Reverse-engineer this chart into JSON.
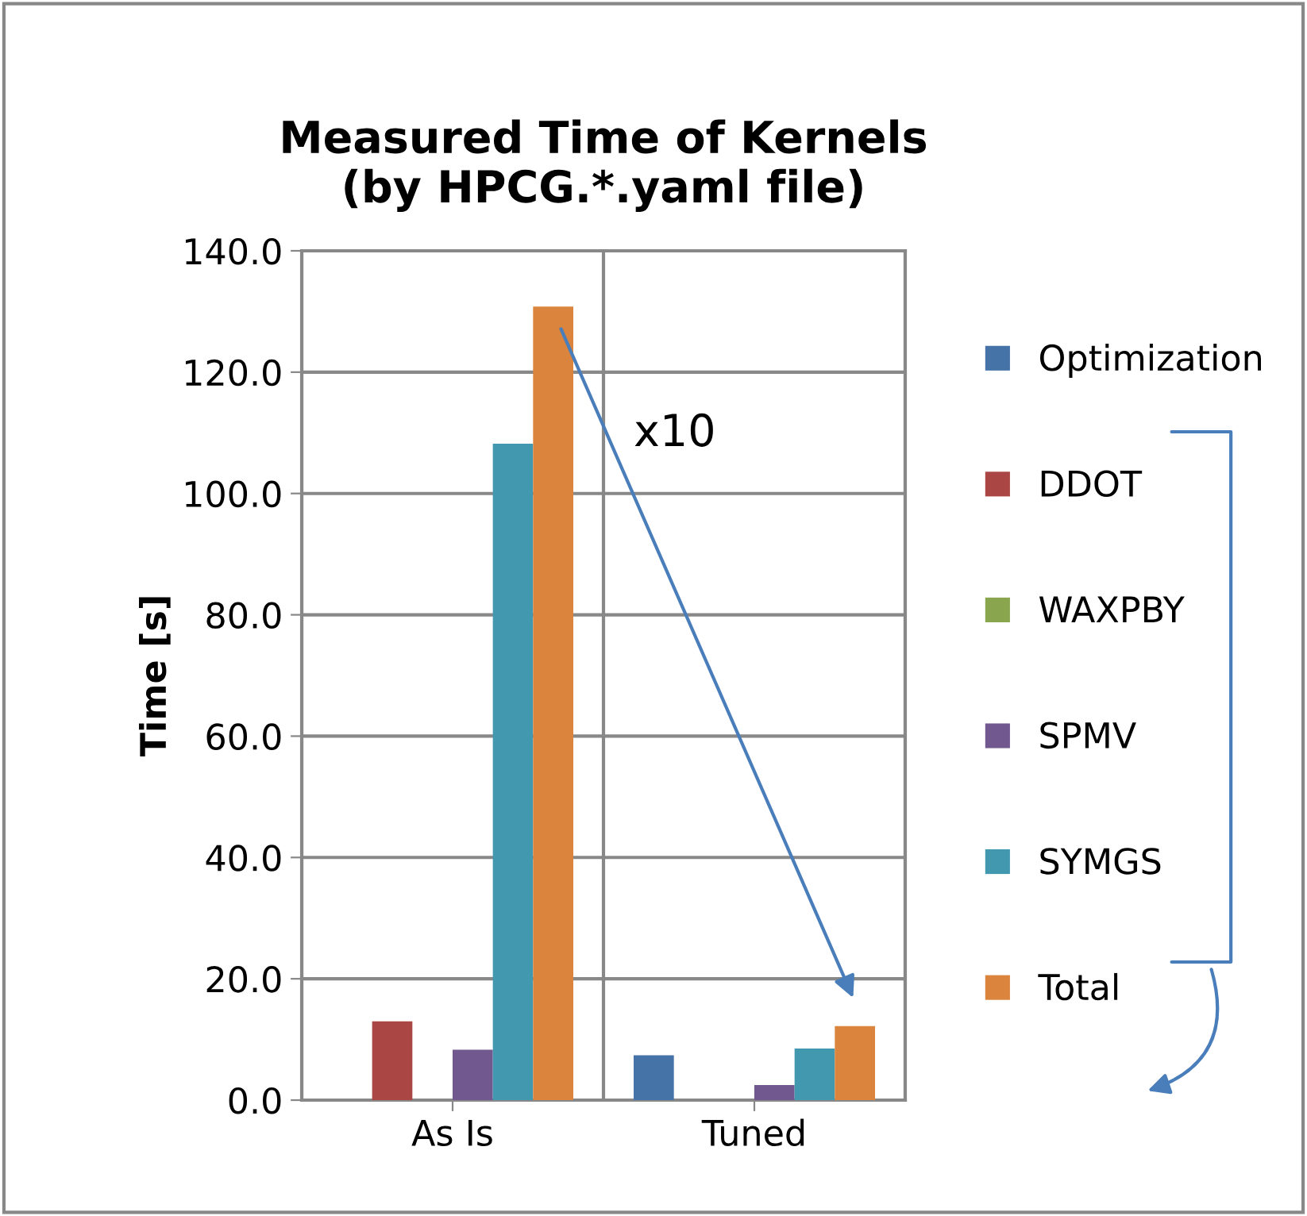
{
  "chart_data": {
    "type": "bar",
    "title": "Measured Time of Kernels\n(by HPCG.*.yaml file)",
    "ylabel": "Time [s]",
    "categories": [
      "As Is",
      "Tuned"
    ],
    "series": [
      {
        "name": "Optimization",
        "color": "#4572a7",
        "values": [
          0,
          7.4
        ]
      },
      {
        "name": "DDOT",
        "color": "#aa4643",
        "values": [
          13.0,
          0
        ]
      },
      {
        "name": "WAXPBY",
        "color": "#89a54e",
        "values": [
          0,
          0
        ]
      },
      {
        "name": "SPMV",
        "color": "#71588f",
        "values": [
          8.3,
          2.5
        ]
      },
      {
        "name": "SYMGS",
        "color": "#4198af",
        "values": [
          108.2,
          8.5
        ]
      },
      {
        "name": "Total",
        "color": "#db843d",
        "values": [
          130.8,
          12.2
        ]
      }
    ],
    "ylim": [
      0,
      140
    ],
    "yticks": [
      {
        "value": 0,
        "label": "0.0"
      },
      {
        "value": 20,
        "label": "20.0"
      },
      {
        "value": 40,
        "label": "40.0"
      },
      {
        "value": 60,
        "label": "60.0"
      },
      {
        "value": 80,
        "label": "80.0"
      },
      {
        "value": 100,
        "label": "100.0"
      },
      {
        "value": 120,
        "label": "120.0"
      },
      {
        "value": 140,
        "label": "140.0"
      }
    ],
    "grid": true,
    "legend": "right",
    "annotations": [
      "x10"
    ]
  }
}
